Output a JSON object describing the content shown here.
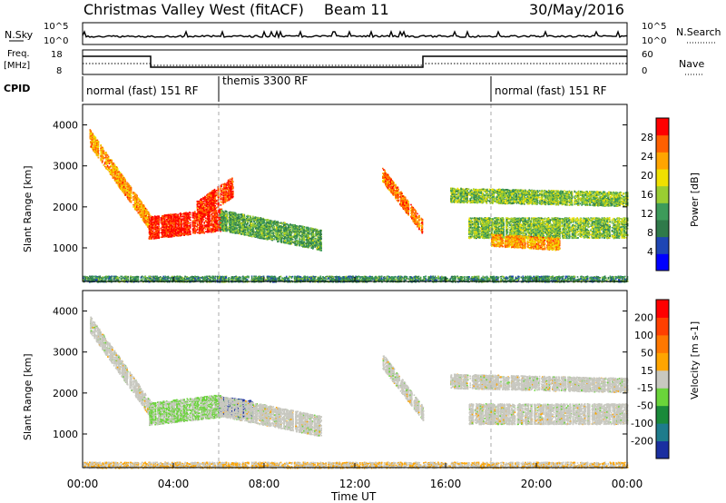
{
  "header": {
    "title": "Christmas Valley West (fitACF)",
    "beam": "Beam 11",
    "date": "30/May/2016"
  },
  "panels": {
    "nsky": {
      "label": "N.Sky",
      "tick_high": "10^5",
      "tick_low": "10^0",
      "right_tick_high": "10^5",
      "right_tick_low": "10^0",
      "right_label": "N.Search"
    },
    "freq": {
      "label_line1": "Freq.",
      "label_line2": "[MHz]",
      "tick_high": "18",
      "tick_low": "8",
      "right_tick_high": "60",
      "right_tick_low": "0",
      "right_label": "Nave"
    },
    "cpid": {
      "label": "CPID",
      "segments": [
        {
          "text": "normal (fast) 151 RF",
          "start_hour": 0
        },
        {
          "text": "themis 3300 RF",
          "start_hour": 6
        },
        {
          "text": "normal (fast) 151 RF",
          "start_hour": 18
        }
      ]
    }
  },
  "colorbars": {
    "power": {
      "label": "Power [dB]",
      "ticks": [
        "28",
        "24",
        "20",
        "16",
        "12",
        "8",
        "4"
      ],
      "colors": [
        "#0000ff",
        "#1e46b4",
        "#2f7a4a",
        "#3d9b5a",
        "#9acd32",
        "#f0e000",
        "#ffa500",
        "#ff6000",
        "#ff0000"
      ]
    },
    "velocity": {
      "label": "Velocity [m s-1]",
      "ticks": [
        "200",
        "100",
        "50",
        "15",
        "-15",
        "-50",
        "-100",
        "-200"
      ],
      "colors": [
        "#1a2fa0",
        "#1e7c8c",
        "#1a8a3a",
        "#6ad43a",
        "#c8c8c0",
        "#ffa500",
        "#ff7800",
        "#ff4000",
        "#ff0000"
      ]
    }
  },
  "chart_data": [
    {
      "type": "heatmap",
      "title": "Christmas Valley West (fitACF) Beam 11 30/May/2016",
      "quantity": "Power",
      "units": "dB",
      "xlabel": "Time UT",
      "ylabel": "Slant Range [km]",
      "x_ticks": [
        "00:00",
        "04:00",
        "08:00",
        "12:00",
        "16:00",
        "20:00",
        "00:00"
      ],
      "y_ticks": [
        1000,
        2000,
        3000,
        4000
      ],
      "xlim_hours": [
        0,
        24
      ],
      "ylim_km": [
        180,
        4500
      ],
      "clim": [
        0,
        30
      ],
      "echo_regions": [
        {
          "name": "early-band",
          "t0": 0.3,
          "t1": 3.0,
          "r_start": 3700,
          "r_end": 1600,
          "thick": 400,
          "power": 22
        },
        {
          "name": "strong-block",
          "t0": 2.9,
          "t1": 6.1,
          "r_start": 1500,
          "r_end": 1700,
          "thick": 550,
          "power": 28
        },
        {
          "name": "rising-arc",
          "t0": 5.0,
          "t1": 6.6,
          "r_start": 1900,
          "r_end": 2500,
          "thick": 500,
          "power": 27
        },
        {
          "name": "mid-patch",
          "t0": 6.0,
          "t1": 10.5,
          "r_start": 1700,
          "r_end": 1200,
          "thick": 500,
          "power": 12
        },
        {
          "name": "diagonal-1",
          "t0": 13.2,
          "t1": 15.0,
          "r_start": 2800,
          "r_end": 1500,
          "thick": 350,
          "power": 24
        },
        {
          "name": "evening-upper",
          "t0": 16.2,
          "t1": 24.0,
          "r_start": 2300,
          "r_end": 2200,
          "thick": 350,
          "power": 14
        },
        {
          "name": "evening-lower",
          "t0": 17.0,
          "t1": 24.0,
          "r_start": 1500,
          "r_end": 1500,
          "thick": 500,
          "power": 14
        },
        {
          "name": "evening-core",
          "t0": 18.0,
          "t1": 21.0,
          "r_start": 1200,
          "r_end": 1100,
          "thick": 300,
          "power": 22
        },
        {
          "name": "ground-scatter",
          "t0": 0.0,
          "t1": 24.0,
          "r_start": 250,
          "r_end": 250,
          "thick": 150,
          "power": 10
        }
      ]
    },
    {
      "type": "heatmap",
      "quantity": "Velocity",
      "units": "m s-1",
      "xlabel": "Time UT",
      "ylabel": "Slant Range [km]",
      "x_ticks": [
        "00:00",
        "04:00",
        "08:00",
        "12:00",
        "16:00",
        "20:00",
        "00:00"
      ],
      "y_ticks": [
        1000,
        2000,
        3000,
        4000
      ],
      "xlim_hours": [
        0,
        24
      ],
      "ylim_km": [
        180,
        4500
      ],
      "clim": [
        -250,
        250
      ],
      "echo_regions": [
        {
          "name": "early-band",
          "t0": 0.3,
          "t1": 3.0,
          "r_start": 3700,
          "r_end": 1600,
          "thick": 400,
          "velocity": 0
        },
        {
          "name": "strong-block",
          "t0": 2.9,
          "t1": 6.1,
          "r_start": 1500,
          "r_end": 1700,
          "thick": 550,
          "velocity": -30
        },
        {
          "name": "red-blob",
          "t0": 6.0,
          "t1": 7.5,
          "r_start": 1700,
          "r_end": 1600,
          "thick": 450,
          "velocity": -220
        },
        {
          "name": "mid-patch",
          "t0": 6.0,
          "t1": 10.5,
          "r_start": 1700,
          "r_end": 1200,
          "thick": 500,
          "velocity": 0
        },
        {
          "name": "diagonal-1",
          "t0": 13.2,
          "t1": 15.0,
          "r_start": 2800,
          "r_end": 1500,
          "thick": 350,
          "velocity": 0
        },
        {
          "name": "evening-upper",
          "t0": 16.2,
          "t1": 24.0,
          "r_start": 2300,
          "r_end": 2200,
          "thick": 350,
          "velocity": 0
        },
        {
          "name": "evening-lower",
          "t0": 17.0,
          "t1": 24.0,
          "r_start": 1500,
          "r_end": 1500,
          "thick": 500,
          "velocity": 0
        },
        {
          "name": "ground-scatter",
          "t0": 0.0,
          "t1": 24.0,
          "r_start": 250,
          "r_end": 250,
          "thick": 150,
          "velocity": 20
        }
      ]
    }
  ]
}
